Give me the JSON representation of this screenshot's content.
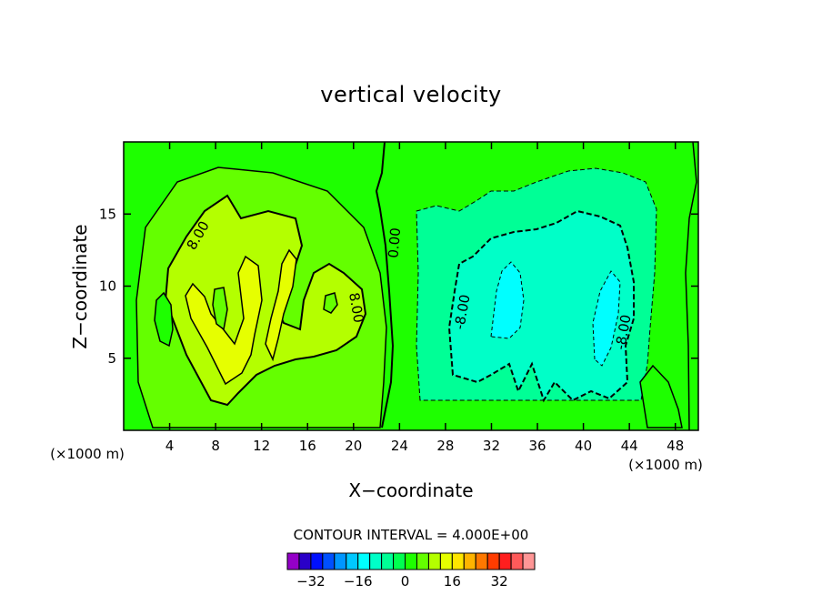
{
  "chart_data": {
    "type": "contour",
    "title": "vertical velocity",
    "xlabel": "X−coordinate",
    "ylabel": "Z−coordinate",
    "x_unit_label": "(×1000 m)",
    "y_unit_label": "(×1000 m)",
    "xlim": [
      0,
      50
    ],
    "ylim": [
      0,
      20
    ],
    "x_ticks": [
      4,
      8,
      12,
      16,
      20,
      24,
      28,
      32,
      36,
      40,
      44,
      48
    ],
    "y_ticks": [
      5,
      10,
      15
    ],
    "contour_interval_label": "CONTOUR INTERVAL = 4.000E+00",
    "contour_labels": [
      {
        "text": "8.00",
        "x": 6.5,
        "y": 13.5,
        "angle": -60
      },
      {
        "text": "8.00",
        "x": 20.2,
        "y": 8.5,
        "angle": 80
      },
      {
        "text": "0.00",
        "x": 23.6,
        "y": 13.0,
        "angle": -85
      },
      {
        "text": "-8.00",
        "x": 29.5,
        "y": 8.2,
        "angle": -80
      },
      {
        "text": "-8.00",
        "x": 43.5,
        "y": 6.8,
        "angle": -80
      }
    ],
    "colorbar": {
      "ticks": [
        -32,
        -16,
        0,
        16,
        32
      ],
      "tick_labels": [
        "−32",
        "−16",
        "0",
        "16",
        "32"
      ],
      "colors": [
        "#9400c8",
        "#2a00c8",
        "#0010ff",
        "#0050ff",
        "#0096ff",
        "#00c8ff",
        "#00ffff",
        "#00ffc8",
        "#00ff96",
        "#00ff50",
        "#1eff00",
        "#64ff00",
        "#b4ff00",
        "#e6ff00",
        "#ffe600",
        "#ffb400",
        "#ff7800",
        "#ff3c00",
        "#ff1e1e",
        "#ff5a5a",
        "#ff9696"
      ]
    },
    "features": [
      {
        "sign": "positive",
        "x": [
          2,
          22
        ],
        "y": [
          2,
          18
        ],
        "peak_value": 16
      },
      {
        "sign": "negative",
        "x": [
          26,
          46
        ],
        "y": [
          2,
          17
        ],
        "min_value": -12
      }
    ]
  }
}
